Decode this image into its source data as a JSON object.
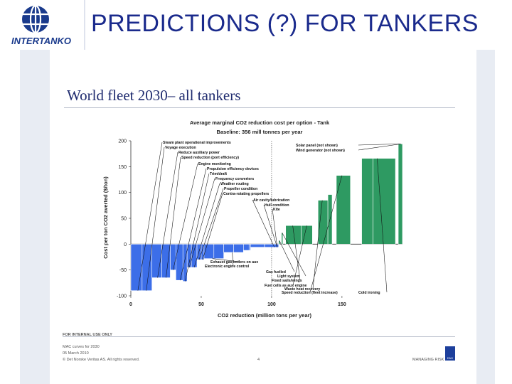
{
  "slide": {
    "title": "PREDICTIONS (?) FOR TANKERS",
    "logo_text": "INTERTANKO",
    "doc_title": "World fleet 2030– all tankers",
    "footer": {
      "internal": "FOR INTERNAL USE ONLY",
      "line1": "MAC curves for 2030",
      "line2": "05 March 2010",
      "line3": "© Det Norske Veritas AS. All rights reserved.",
      "page": "4",
      "brand": "MANAGING RISK",
      "brand_logo": "DNV"
    }
  },
  "colors": {
    "title": "#1a2a8c",
    "negative_bar": "#3c6ee8",
    "positive_bar": "#2e9a62",
    "logo_blue": "#1a3a8c"
  },
  "chart_data": {
    "type": "bar",
    "title": "Average marginal CO2 reduction cost per option - Tank",
    "subtitle": "Baseline: 356 mill tonnes per year",
    "xlabel": "CO2 reduction (million tons per year)",
    "ylabel": "Cost per ton CO2 averted ($/ton)",
    "xlim": [
      0,
      193
    ],
    "ylim": [
      -100,
      200
    ],
    "xticks": [
      0,
      50,
      100,
      150
    ],
    "yticks": [
      -100,
      -50,
      0,
      50,
      100,
      150,
      200
    ],
    "grid": false,
    "reference_line_x": 100,
    "bars": [
      {
        "x0": 0,
        "x1": 8,
        "y": -90
      },
      {
        "x0": 8,
        "x1": 15,
        "y": -90
      },
      {
        "x0": 15,
        "x1": 22,
        "y": -65
      },
      {
        "x0": 22,
        "x1": 28,
        "y": -65
      },
      {
        "x0": 28,
        "x1": 32,
        "y": -50
      },
      {
        "x0": 32,
        "x1": 37,
        "y": -70
      },
      {
        "x0": 37,
        "x1": 40,
        "y": -72
      },
      {
        "x0": 40,
        "x1": 43,
        "y": -45
      },
      {
        "x0": 43,
        "x1": 47,
        "y": -45
      },
      {
        "x0": 47,
        "x1": 50,
        "y": -30
      },
      {
        "x0": 50,
        "x1": 52,
        "y": -30
      },
      {
        "x0": 52,
        "x1": 59,
        "y": -28
      },
      {
        "x0": 59,
        "x1": 66,
        "y": -28
      },
      {
        "x0": 66,
        "x1": 73,
        "y": -16
      },
      {
        "x0": 73,
        "x1": 80,
        "y": -16
      },
      {
        "x0": 80,
        "x1": 84,
        "y": -12
      },
      {
        "x0": 84,
        "x1": 85,
        "y": -12
      },
      {
        "x0": 85,
        "x1": 95,
        "y": -6
      },
      {
        "x0": 95,
        "x1": 105,
        "y": -6
      },
      {
        "x0": 105,
        "x1": 106,
        "y": 7
      },
      {
        "x0": 107,
        "x1": 108,
        "y": 22
      },
      {
        "x0": 110,
        "x1": 121,
        "y": 36
      },
      {
        "x0": 121,
        "x1": 129,
        "y": 36
      },
      {
        "x0": 133,
        "x1": 140,
        "y": 85
      },
      {
        "x0": 140,
        "x1": 143,
        "y": 96
      },
      {
        "x0": 146,
        "x1": 156,
        "y": 133
      },
      {
        "x0": 164,
        "x1": 172,
        "y": 166
      },
      {
        "x0": 172,
        "x1": 188,
        "y": 166
      },
      {
        "x0": 190,
        "x1": 193,
        "y": 194
      }
    ],
    "annotations": [
      {
        "label": "Steam plant operational improvements",
        "x": 5,
        "y": -90
      },
      {
        "label": "Voyage execution",
        "x": 11,
        "y": -90
      },
      {
        "label": "Reduce auxiliary power",
        "x": 19,
        "y": -65
      },
      {
        "label": "Speed reduction (port efficiency)",
        "x": 25,
        "y": -65
      },
      {
        "label": "Engine monitoring",
        "x": 30,
        "y": -50
      },
      {
        "label": "Propulsion efficiency devices",
        "x": 35,
        "y": -70
      },
      {
        "label": "Trim/draft",
        "x": 38.5,
        "y": -72
      },
      {
        "label": "Frequency converters",
        "x": 41.5,
        "y": -45
      },
      {
        "label": "Weather routing",
        "x": 45,
        "y": -45
      },
      {
        "label": "Propeller condition",
        "x": 48.5,
        "y": -30
      },
      {
        "label": "Contra-rotating propellers",
        "x": 51,
        "y": -30
      },
      {
        "label": "Air cavity/lubrication",
        "x": 102,
        "y": -6
      },
      {
        "label": "Hull condition",
        "x": 104,
        "y": -6
      },
      {
        "label": "Kite",
        "x": 104,
        "y": -6
      },
      {
        "label": "Solar panel (not shown)",
        "x": 191,
        "y": 194
      },
      {
        "label": "Wind generator (not shown)",
        "x": 192,
        "y": 194
      },
      {
        "label": "Exhaust gas boilers on aux",
        "x": 58,
        "y": -28
      },
      {
        "label": "Electronic engine control",
        "x": 72,
        "y": -16
      },
      {
        "label": "Gas fuelled",
        "x": 105.5,
        "y": 7
      },
      {
        "label": "Light system",
        "x": 107.5,
        "y": 22
      },
      {
        "label": "Fixed sails/wings",
        "x": 115,
        "y": 36
      },
      {
        "label": "Fuel cells as aux engine",
        "x": 125,
        "y": 36
      },
      {
        "label": "Waste heat recovery",
        "x": 136,
        "y": 85
      },
      {
        "label": "Speed reduction (fleet increase)",
        "x": 150,
        "y": 133
      },
      {
        "label": "Cold ironing",
        "x": 175,
        "y": 166
      }
    ]
  }
}
